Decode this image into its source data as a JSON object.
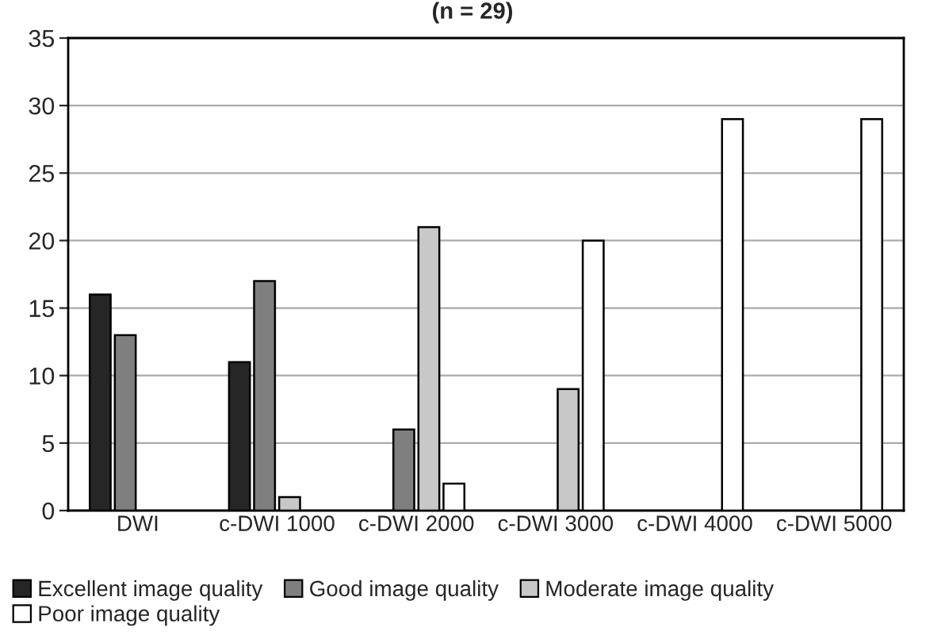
{
  "chart_data": {
    "type": "bar",
    "title": "(n = 29)",
    "categories": [
      "DWI",
      "c-DWI 1000",
      "c-DWI 2000",
      "c-DWI 3000",
      "c-DWI 4000",
      "c-DWI 5000"
    ],
    "series": [
      {
        "name": "Excellent image quality",
        "color": "#262626",
        "values": [
          16,
          11,
          null,
          null,
          null,
          null
        ]
      },
      {
        "name": "Good image quality",
        "color": "#7f7f7f",
        "values": [
          13,
          17,
          6,
          null,
          null,
          null
        ]
      },
      {
        "name": "Moderate image quality",
        "color": "#c8c8c8",
        "values": [
          null,
          1,
          21,
          9,
          null,
          null
        ]
      },
      {
        "name": "Poor image quality",
        "color": "#ffffff",
        "values": [
          null,
          null,
          2,
          20,
          29,
          29
        ]
      }
    ],
    "ylim": [
      0,
      35
    ],
    "yticks": [
      0,
      5,
      10,
      15,
      20,
      25,
      30,
      35
    ],
    "grid": "y",
    "legend": "bottom"
  }
}
